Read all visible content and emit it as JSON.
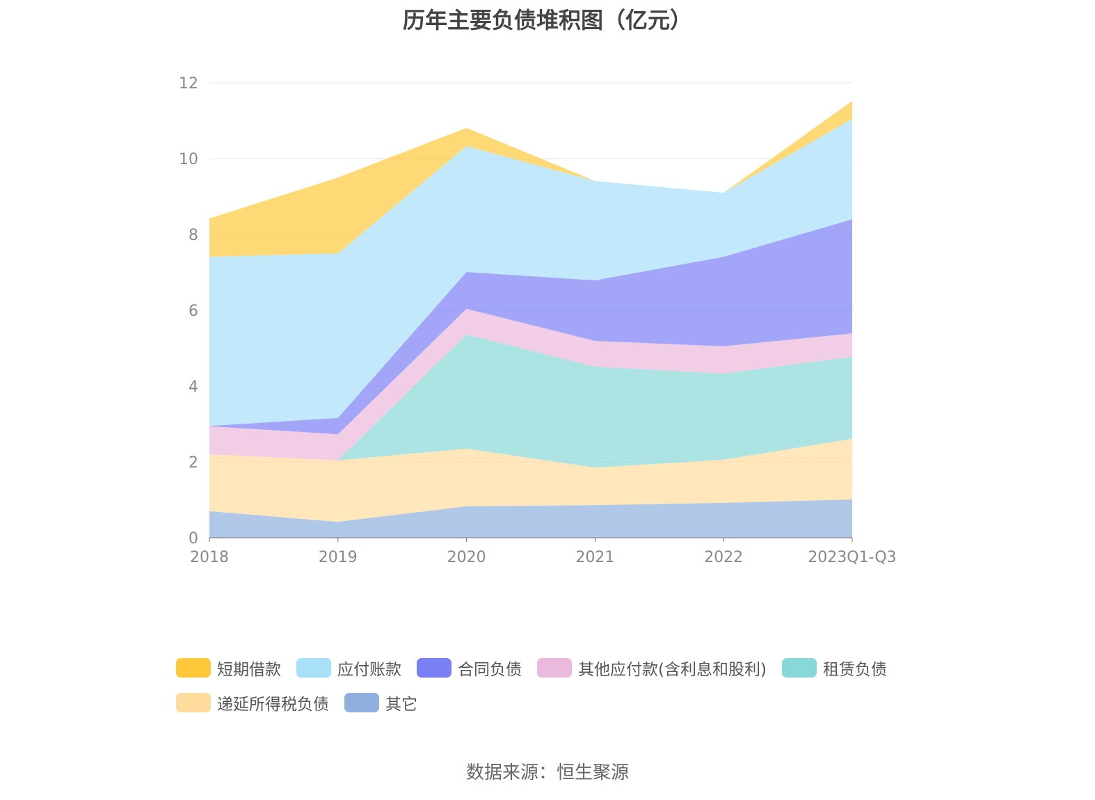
{
  "chart_data": {
    "type": "area",
    "stacked": true,
    "title": "历年主要负债堆积图（亿元）",
    "categories": [
      "2018",
      "2019",
      "2020",
      "2021",
      "2022",
      "2023Q1-Q3"
    ],
    "ylim": [
      0,
      12
    ],
    "yticks": [
      0,
      2,
      4,
      6,
      8,
      10,
      12
    ],
    "grid": true,
    "legend_position": "bottom",
    "series": [
      {
        "name": "其它",
        "color": "#8FB0DE",
        "values": [
          0.7,
          0.42,
          0.83,
          0.86,
          0.92,
          1.01
        ]
      },
      {
        "name": "递延所得税负债",
        "color": "#FFDB9E",
        "values": [
          1.5,
          1.62,
          1.52,
          0.99,
          1.14,
          1.6
        ]
      },
      {
        "name": "租赁负债",
        "color": "#87D8D6",
        "values": [
          0,
          0,
          3.01,
          2.66,
          2.27,
          2.16
        ]
      },
      {
        "name": "其他应付款(含利息和股利)",
        "color": "#EBB9DC",
        "values": [
          0.74,
          0.69,
          0.68,
          0.68,
          0.72,
          0.62
        ]
      },
      {
        "name": "合同负债",
        "color": "#7A7FF5",
        "values": [
          0.01,
          0.43,
          0.97,
          1.6,
          2.36,
          3.01
        ]
      },
      {
        "name": "应付账款",
        "color": "#A8E0FA",
        "values": [
          4.46,
          4.34,
          3.32,
          2.62,
          1.69,
          2.65
        ]
      },
      {
        "name": "短期借款",
        "color": "#FFC93B",
        "values": [
          1.01,
          2.0,
          0.48,
          0,
          0,
          0.47
        ]
      }
    ],
    "legend_order": [
      "短期借款",
      "应付账款",
      "合同负债",
      "其他应付款(含利息和股利)",
      "租赁负债",
      "递延所得税负债",
      "其它"
    ]
  },
  "source": "数据来源：恒生聚源"
}
